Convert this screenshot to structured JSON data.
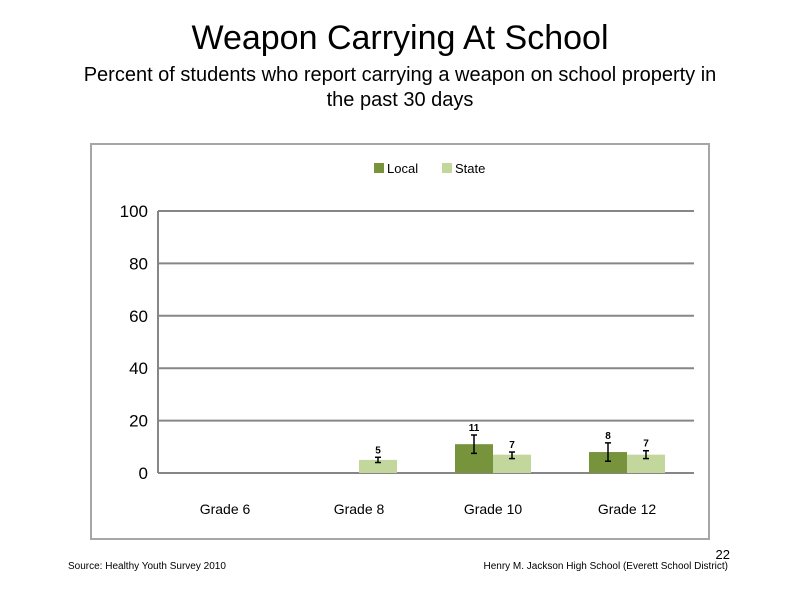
{
  "slide": {
    "title": "Weapon Carrying At School",
    "subtitle": "Percent of students who report carrying a weapon on school property in the past 30 days",
    "footer_source": "Source: Healthy Youth Survey 2010",
    "footer_school": "Henry M. Jackson High School (Everett School District)",
    "page_number": "22"
  },
  "chart_data": {
    "type": "bar",
    "categories": [
      "Grade 6",
      "Grade 8",
      "Grade 10",
      "Grade 12"
    ],
    "series": [
      {
        "name": "Local",
        "color": "#77933c",
        "values": [
          null,
          null,
          11,
          8
        ],
        "labels": [
          "",
          "",
          "11",
          "8"
        ],
        "error_low": [
          null,
          null,
          7.5,
          4.5
        ],
        "error_high": [
          null,
          null,
          14.5,
          11.5
        ]
      },
      {
        "name": "State",
        "color": "#c3d69b",
        "values": [
          null,
          5,
          7,
          7
        ],
        "labels": [
          "",
          "5",
          "7",
          "7"
        ],
        "error_low": [
          null,
          4,
          5.5,
          5.5
        ],
        "error_high": [
          null,
          6,
          8,
          8.5
        ]
      }
    ],
    "ylim": [
      0,
      100
    ],
    "yticks": [
      0,
      20,
      40,
      60,
      80,
      100
    ],
    "grid": true,
    "legend_position": "top-center"
  }
}
